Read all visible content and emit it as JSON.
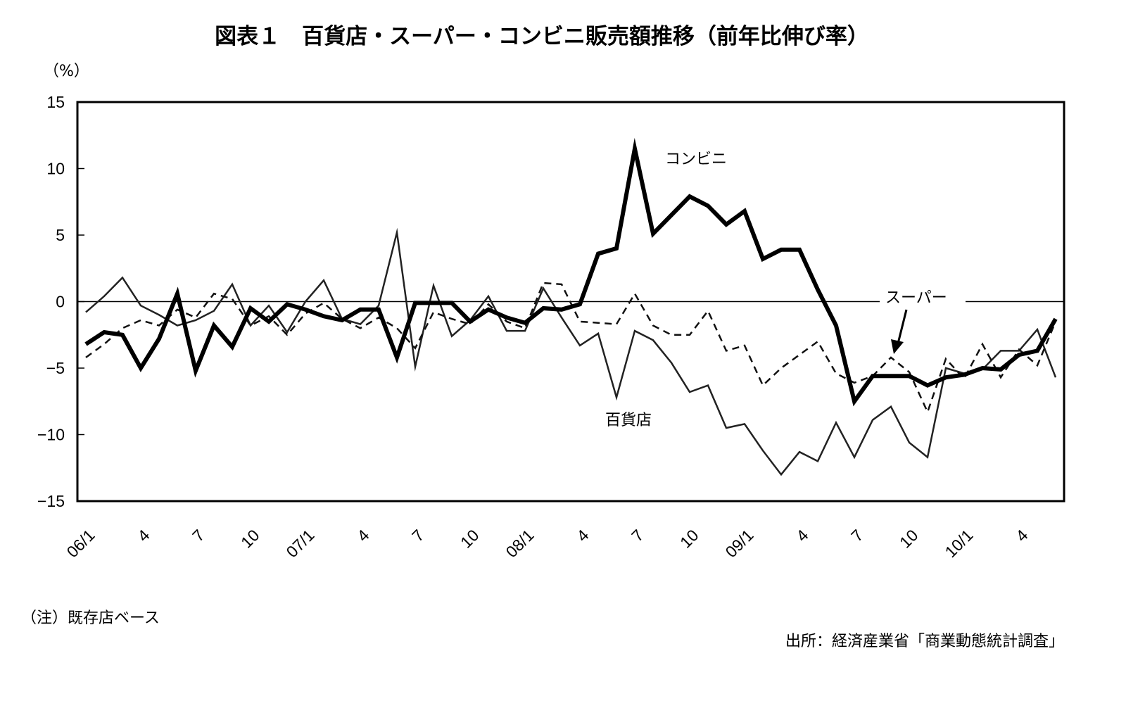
{
  "chart_data": {
    "type": "line",
    "title": "図表１　百貨店・スーパー・コンビニ販売額推移（前年比伸び率）",
    "ylabel": "（%）",
    "xlabel": "",
    "ylim": [
      -15,
      15
    ],
    "yticks": [
      "15",
      "10",
      "5",
      "0",
      "−5",
      "−10",
      "−15"
    ],
    "ytick_values": [
      15,
      10,
      5,
      0,
      -5,
      -10,
      -15
    ],
    "x": [
      "06/1",
      "06/2",
      "06/3",
      "06/4",
      "06/5",
      "06/6",
      "06/7",
      "06/8",
      "06/9",
      "06/10",
      "06/11",
      "06/12",
      "07/1",
      "07/2",
      "07/3",
      "07/4",
      "07/5",
      "07/6",
      "07/7",
      "07/8",
      "07/9",
      "07/10",
      "07/11",
      "07/12",
      "08/1",
      "08/2",
      "08/3",
      "08/4",
      "08/5",
      "08/6",
      "08/7",
      "08/8",
      "08/9",
      "08/10",
      "08/11",
      "08/12",
      "09/1",
      "09/2",
      "09/3",
      "09/4",
      "09/5",
      "09/6",
      "09/7",
      "09/8",
      "09/9",
      "09/10",
      "09/11",
      "09/12",
      "10/1",
      "10/2",
      "10/3",
      "10/4",
      "10/5",
      "10/6"
    ],
    "xtick_labels": [
      "06/1",
      "4",
      "7",
      "10",
      "07/1",
      "4",
      "7",
      "10",
      "08/1",
      "4",
      "7",
      "10",
      "09/1",
      "4",
      "7",
      "10",
      "10/1",
      "4"
    ],
    "grid": false,
    "zero_line": true,
    "series": [
      {
        "name": "百貨店",
        "style": "thin-solid",
        "color": "#222222",
        "values": [
          -0.8,
          0.4,
          1.8,
          -0.3,
          -1.0,
          -1.8,
          -1.4,
          -0.7,
          1.3,
          -1.8,
          -0.3,
          -2.3,
          0.0,
          1.6,
          -1.3,
          -1.7,
          -0.3,
          5.2,
          -4.9,
          1.2,
          -2.6,
          -1.4,
          0.4,
          -2.2,
          -2.2,
          1.0,
          -1.2,
          -3.3,
          -2.4,
          -7.2,
          -2.2,
          -2.9,
          -4.6,
          -6.8,
          -6.3,
          -9.5,
          -9.2,
          -11.2,
          -13.0,
          -11.3,
          -12.0,
          -9.1,
          -11.7,
          -8.9,
          -7.9,
          -10.6,
          -11.7,
          -5.0,
          -5.4,
          -5.1,
          -3.7,
          -3.7,
          -2.1,
          -5.7
        ]
      },
      {
        "name": "スーパー",
        "style": "dashed",
        "color": "#111111",
        "values": [
          -4.2,
          -3.2,
          -2.0,
          -1.4,
          -1.8,
          -0.6,
          -1.2,
          0.6,
          0.2,
          -1.8,
          -1.1,
          -2.5,
          -0.9,
          -0.1,
          -1.3,
          -2.0,
          -1.2,
          -2.0,
          -3.5,
          -0.8,
          -1.3,
          -1.7,
          -0.2,
          -1.5,
          -2.0,
          1.4,
          1.3,
          -1.5,
          -1.6,
          -1.7,
          0.6,
          -1.8,
          -2.5,
          -2.5,
          -0.7,
          -3.7,
          -3.3,
          -6.3,
          -5.0,
          -4.0,
          -3.0,
          -5.4,
          -6.1,
          -5.6,
          -4.2,
          -5.3,
          -8.3,
          -4.3,
          -5.8,
          -3.2,
          -5.7,
          -3.6,
          -4.8,
          -1.5
        ]
      },
      {
        "name": "コンビニ",
        "style": "thick-solid",
        "color": "#000000",
        "values": [
          -3.2,
          -2.3,
          -2.5,
          -5.0,
          -2.8,
          0.6,
          -5.2,
          -1.8,
          -3.4,
          -0.5,
          -1.5,
          -0.2,
          -0.6,
          -1.1,
          -1.4,
          -0.6,
          -0.6,
          -4.2,
          -0.1,
          -0.1,
          -0.1,
          -1.5,
          -0.6,
          -1.2,
          -1.6,
          -0.5,
          -0.6,
          -0.2,
          3.6,
          4.0,
          11.5,
          5.1,
          6.5,
          7.9,
          7.2,
          5.8,
          6.8,
          3.2,
          3.9,
          3.9,
          0.9,
          -1.8,
          -7.5,
          -5.6,
          -5.6,
          -5.6,
          -6.3,
          -5.7,
          -5.5,
          -5.0,
          -5.1,
          -4.0,
          -3.7,
          -1.3
        ]
      }
    ],
    "annotations": [
      "コンビニ",
      "スーパー",
      "百貨店"
    ]
  },
  "notes": {
    "footnote": "（注）既存店ベース",
    "source": "出所：経済産業省「商業動態統計調査」"
  }
}
